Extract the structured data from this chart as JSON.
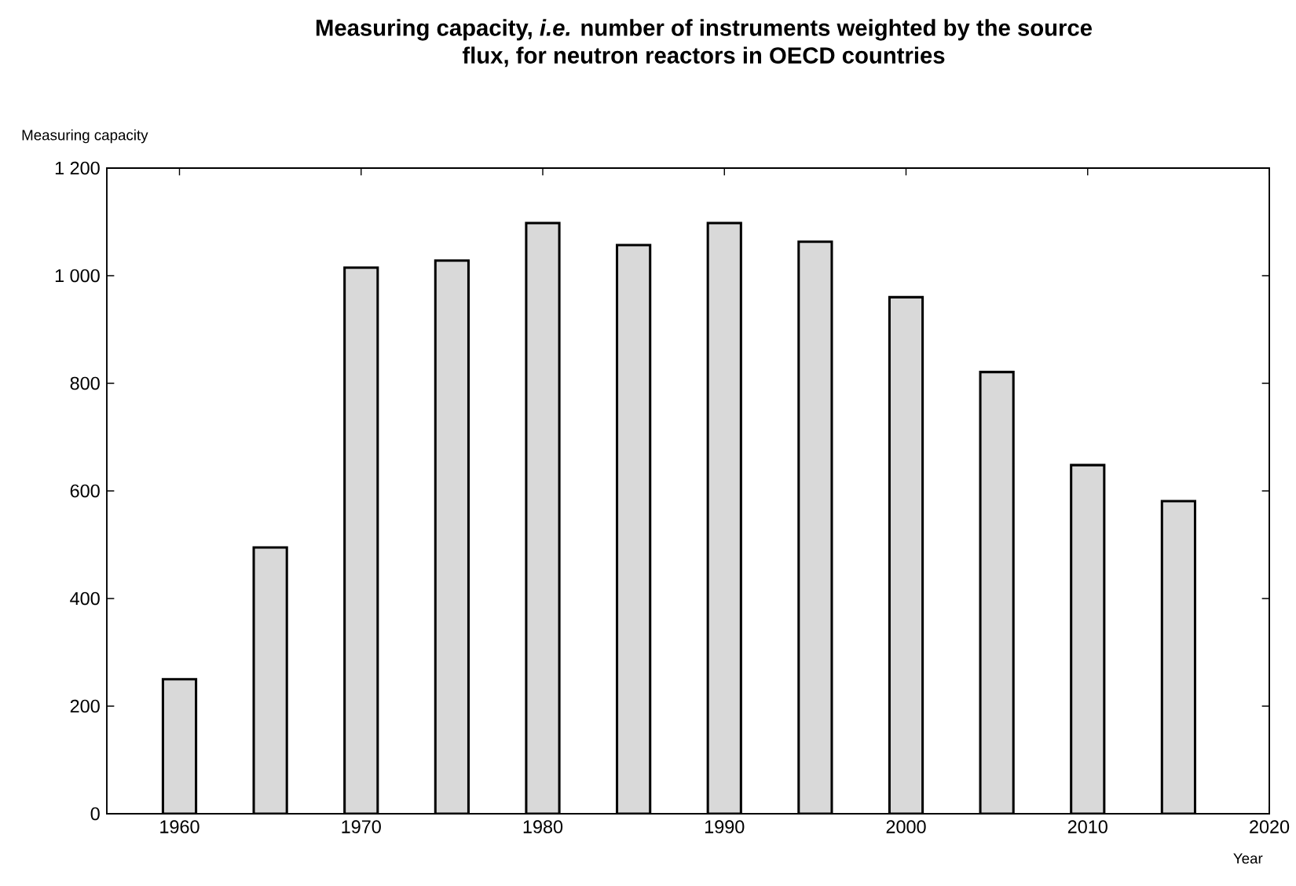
{
  "chart_data": {
    "type": "bar",
    "title": "Measuring capacity, *i.e.* number of instruments weighted by the source flux, for neutron reactors in OECD countries",
    "xlabel": "Year",
    "ylabel": "Measuring capacity",
    "x": [
      1960,
      1965,
      1970,
      1975,
      1980,
      1985,
      1990,
      1995,
      2000,
      2005,
      2010,
      2015
    ],
    "values": [
      250,
      495,
      1015,
      1028,
      1098,
      1057,
      1098,
      1063,
      960,
      821,
      648,
      581
    ],
    "color": "#d9d9d9",
    "xlim": [
      1956,
      2020
    ],
    "xticks": [
      1960,
      1970,
      1980,
      1990,
      2000,
      2010,
      2020
    ],
    "ylim": [
      0,
      1200
    ],
    "yticks": [
      0,
      200,
      400,
      600,
      800,
      {
        "value": 1000,
        "label": "1 000"
      },
      {
        "value": 1200,
        "label": "1 200"
      }
    ],
    "grid": false
  }
}
